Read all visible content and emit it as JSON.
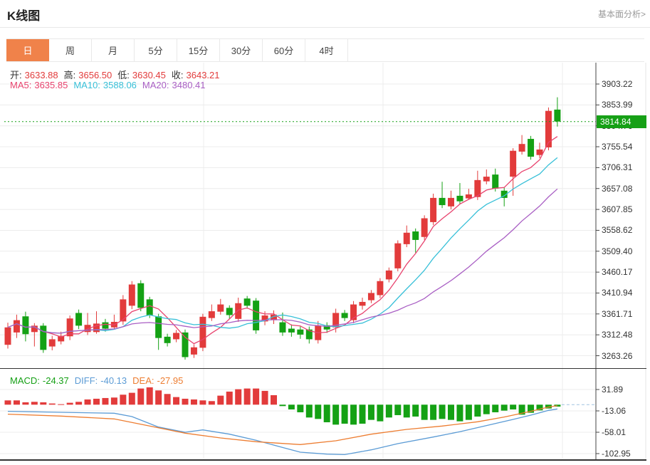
{
  "header": {
    "title": "K线图",
    "link": "基本面分析>"
  },
  "tabs": {
    "items": [
      {
        "label": "日",
        "active": true
      },
      {
        "label": "周",
        "active": false
      },
      {
        "label": "月",
        "active": false
      },
      {
        "label": "5分",
        "active": false
      },
      {
        "label": "15分",
        "active": false
      },
      {
        "label": "30分",
        "active": false
      },
      {
        "label": "60分",
        "active": false
      },
      {
        "label": "4时",
        "active": false
      }
    ],
    "active_bg": "#f0824a"
  },
  "readout": {
    "ohlc": [
      {
        "label": "开:",
        "value": "3633.88"
      },
      {
        "label": "高:",
        "value": "3656.50"
      },
      {
        "label": "低:",
        "value": "3630.45"
      },
      {
        "label": "收:",
        "value": "3643.21"
      }
    ],
    "ohlc_label_color": "#333333",
    "ohlc_value_color": "#e23b3b",
    "ma": [
      {
        "label": "MA5:",
        "value": "3635.85",
        "color": "#e8436e"
      },
      {
        "label": "MA10:",
        "value": "3588.06",
        "color": "#38c0d8"
      },
      {
        "label": "MA20:",
        "value": "3480.41",
        "color": "#a95fc4"
      }
    ],
    "macd": [
      {
        "label": "MACD:",
        "value": "-24.37",
        "color": "#16a016"
      },
      {
        "label": "DIFF:",
        "value": "-40.13",
        "color": "#5b9bd5"
      },
      {
        "label": "DEA:",
        "value": "-27.95",
        "color": "#ed7d31"
      }
    ]
  },
  "chart_data": [
    {
      "type": "candlestick",
      "title": "K线图 daily candles with MA5/MA10/MA20 overlays",
      "y_ticks": [
        "3903.22",
        "3853.99",
        "3804.76",
        "3755.54",
        "3706.31",
        "3657.08",
        "3607.85",
        "3558.62",
        "3509.40",
        "3460.17",
        "3410.94",
        "3361.71",
        "3312.48",
        "3263.26"
      ],
      "current_price": 3814.84,
      "current_price_label": "3814.84",
      "ma_periods": [
        5,
        10,
        20
      ],
      "grid": true,
      "legend_position": "top-left",
      "candles_ohlc": [
        [
          3289,
          3341,
          3280,
          3330
        ],
        [
          3318,
          3360,
          3305,
          3347
        ],
        [
          3356,
          3367,
          3297,
          3314
        ],
        [
          3319,
          3340,
          3285,
          3334
        ],
        [
          3334,
          3340,
          3270,
          3277
        ],
        [
          3285,
          3310,
          3276,
          3302
        ],
        [
          3297,
          3320,
          3290,
          3310
        ],
        [
          3309,
          3358,
          3300,
          3351
        ],
        [
          3364,
          3372,
          3326,
          3334
        ],
        [
          3319,
          3364,
          3312,
          3336
        ],
        [
          3319,
          3368,
          3315,
          3339
        ],
        [
          3342,
          3350,
          3320,
          3327
        ],
        [
          3330,
          3360,
          3325,
          3343
        ],
        [
          3344,
          3406,
          3336,
          3396
        ],
        [
          3381,
          3439,
          3373,
          3431
        ],
        [
          3434,
          3441,
          3368,
          3376
        ],
        [
          3396,
          3402,
          3352,
          3359
        ],
        [
          3356,
          3362,
          3277,
          3305
        ],
        [
          3308,
          3315,
          3285,
          3293
        ],
        [
          3302,
          3324,
          3295,
          3317
        ],
        [
          3318,
          3325,
          3254,
          3260
        ],
        [
          3266,
          3290,
          3258,
          3283
        ],
        [
          3282,
          3362,
          3274,
          3355
        ],
        [
          3352,
          3384,
          3345,
          3368
        ],
        [
          3367,
          3397,
          3360,
          3384
        ],
        [
          3376,
          3382,
          3350,
          3359
        ],
        [
          3350,
          3400,
          3343,
          3387
        ],
        [
          3398,
          3404,
          3374,
          3381
        ],
        [
          3393,
          3399,
          3315,
          3323
        ],
        [
          3344,
          3368,
          3335,
          3358
        ],
        [
          3347,
          3370,
          3338,
          3360
        ],
        [
          3342,
          3365,
          3310,
          3318
        ],
        [
          3327,
          3337,
          3308,
          3318
        ],
        [
          3325,
          3332,
          3303,
          3313
        ],
        [
          3325,
          3332,
          3292,
          3302
        ],
        [
          3300,
          3345,
          3292,
          3335
        ],
        [
          3335,
          3342,
          3317,
          3325
        ],
        [
          3330,
          3374,
          3318,
          3364
        ],
        [
          3364,
          3371,
          3345,
          3352
        ],
        [
          3347,
          3392,
          3340,
          3384
        ],
        [
          3381,
          3400,
          3372,
          3390
        ],
        [
          3394,
          3418,
          3387,
          3411
        ],
        [
          3406,
          3446,
          3399,
          3439
        ],
        [
          3443,
          3471,
          3436,
          3464
        ],
        [
          3469,
          3535,
          3462,
          3528
        ],
        [
          3526,
          3570,
          3519,
          3553
        ],
        [
          3556,
          3563,
          3506,
          3536
        ],
        [
          3543,
          3594,
          3536,
          3587
        ],
        [
          3578,
          3645,
          3571,
          3635
        ],
        [
          3635,
          3673,
          3611,
          3618
        ],
        [
          3615,
          3652,
          3608,
          3635
        ],
        [
          3640,
          3670,
          3620,
          3627
        ],
        [
          3633.88,
          3656.5,
          3630.45,
          3643.21
        ],
        [
          3637,
          3699,
          3630,
          3677
        ],
        [
          3674,
          3702,
          3667,
          3685
        ],
        [
          3690,
          3704,
          3650,
          3657
        ],
        [
          3652,
          3659,
          3615,
          3635
        ],
        [
          3685,
          3752,
          3640,
          3746
        ],
        [
          3744,
          3783,
          3737,
          3762
        ],
        [
          3774,
          3781,
          3725,
          3732
        ],
        [
          3736,
          3765,
          3729,
          3749
        ],
        [
          3754,
          3848,
          3747,
          3840
        ],
        [
          3843,
          3872,
          3803,
          3814.84
        ]
      ]
    },
    {
      "type": "bar",
      "title": "MACD histogram with DIFF/DEA lines",
      "y_ticks": [
        "31.89",
        "-13.06",
        "-58.01",
        "-102.95"
      ],
      "grid": true,
      "histogram": [
        9,
        9,
        5,
        6,
        5,
        2.5,
        1,
        4,
        6,
        11,
        12.5,
        14,
        15,
        21,
        25,
        34,
        36.5,
        30,
        22.5,
        16,
        12.5,
        11,
        9,
        7.5,
        19,
        27.5,
        32.5,
        34,
        34,
        29,
        20,
        -3,
        -10,
        -16,
        -27,
        -30,
        -37,
        -42,
        -40,
        -42,
        -40,
        -32,
        -35,
        -27,
        -22,
        -27,
        -25,
        -32,
        -32,
        -30,
        -32,
        -35,
        -32,
        -25,
        -20,
        -16,
        -12.5,
        -10,
        -21,
        -17,
        -12,
        -8,
        -4
      ],
      "diff_line": [
        [
          0,
          -14
        ],
        [
          6,
          -16
        ],
        [
          12,
          -18
        ],
        [
          14,
          -25
        ],
        [
          17,
          -47
        ],
        [
          20,
          -58
        ],
        [
          22,
          -53
        ],
        [
          25,
          -62
        ],
        [
          28,
          -75
        ],
        [
          31,
          -90
        ],
        [
          33,
          -100
        ],
        [
          36,
          -104
        ],
        [
          38,
          -105
        ],
        [
          41,
          -95
        ],
        [
          44,
          -82
        ],
        [
          48,
          -68
        ],
        [
          51,
          -57
        ],
        [
          54,
          -44
        ],
        [
          57,
          -31
        ],
        [
          59,
          -22
        ],
        [
          61,
          -12
        ],
        [
          62,
          -9
        ]
      ],
      "dea_line": [
        [
          0,
          -20
        ],
        [
          6,
          -24
        ],
        [
          12,
          -30
        ],
        [
          16,
          -45
        ],
        [
          20,
          -60
        ],
        [
          24,
          -70
        ],
        [
          28,
          -78
        ],
        [
          33,
          -84
        ],
        [
          37,
          -76
        ],
        [
          41,
          -62
        ],
        [
          45,
          -52
        ],
        [
          49,
          -45
        ],
        [
          53,
          -36
        ],
        [
          56,
          -26
        ],
        [
          59,
          -14
        ],
        [
          61,
          -5
        ],
        [
          62,
          -2
        ]
      ],
      "zero_dash_value": 0
    }
  ],
  "colors": {
    "up": "#e23b3b",
    "down": "#14a114",
    "ma5": "#e8436e",
    "ma10": "#38c0d8",
    "ma20": "#a95fc4",
    "diff": "#5b9bd5",
    "dea": "#ed7d31",
    "price_line": "#16a016",
    "badge_bg": "#16a016",
    "grid": "#ececec",
    "axis": "#444444",
    "separator": "#333333",
    "dash_line": "#9fc3e0"
  }
}
